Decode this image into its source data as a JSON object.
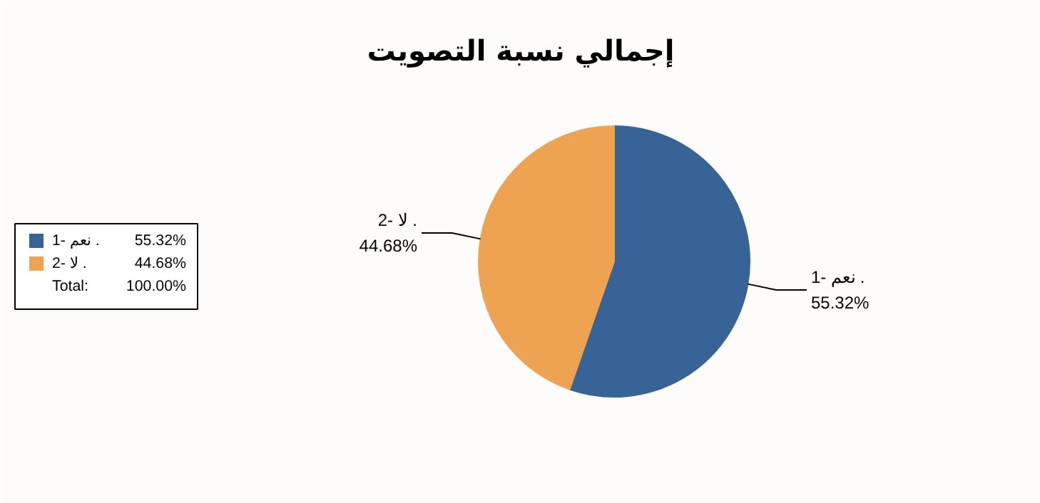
{
  "chart_data": {
    "type": "pie",
    "title": "إجمالي نسبة التصويت",
    "categories": [
      "1- نعم .",
      "2- لا ."
    ],
    "values": [
      55.32,
      44.68
    ],
    "colors": [
      "#386397",
      "#eea352"
    ],
    "value_labels": [
      "55.32%",
      "44.68%"
    ],
    "legend": "left",
    "annotations": [
      "Total:",
      "100.00%"
    ]
  }
}
